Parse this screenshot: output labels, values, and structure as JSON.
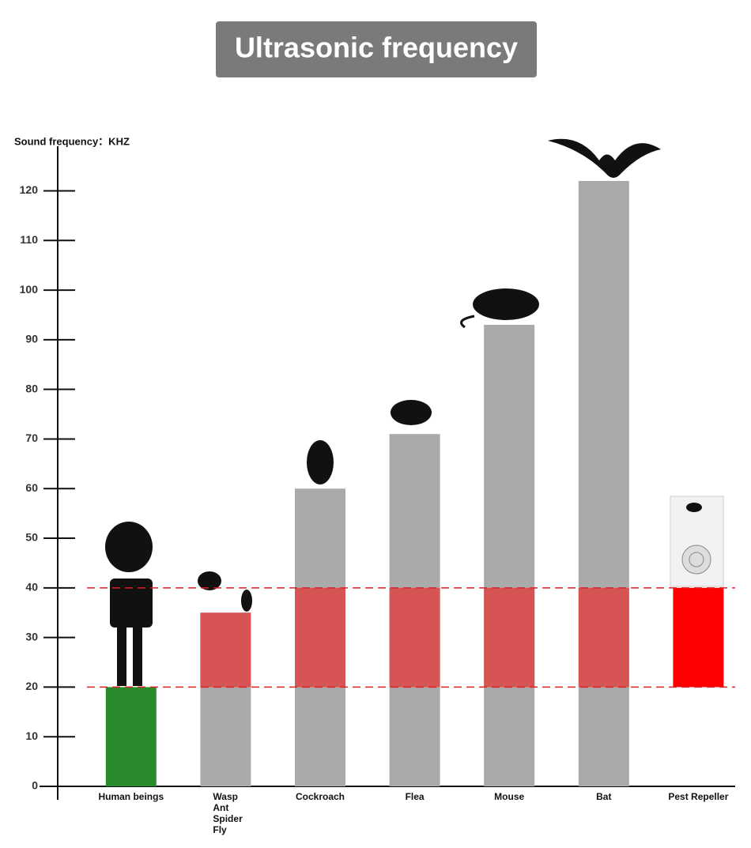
{
  "chart_data": {
    "type": "bar",
    "title": "Ultrasonic frequency",
    "y_label": "Sound frequency：KHZ",
    "categories": [
      "Human beings",
      "Wasp\nAnt\nSpider\nFly",
      "Cockroach",
      "Flea",
      "Mouse",
      "Bat",
      "Pest Repeller"
    ],
    "values": [
      20,
      35,
      60,
      71,
      93,
      122,
      40
    ],
    "bases": [
      0,
      0,
      0,
      0,
      0,
      0,
      20
    ],
    "colors": [
      "#2a8a2e",
      "#aaaaaa",
      "#aaaaaa",
      "#aaaaaa",
      "#aaaaaa",
      "#aaaaaa",
      "#ff0000"
    ],
    "bar_color": "#aaaaaa",
    "band": [
      20,
      40
    ],
    "band_color": "#d65454",
    "ylim": [
      0,
      129
    ],
    "yticks": [
      0,
      10,
      20,
      30,
      40,
      50,
      60,
      70,
      80,
      90,
      100,
      110,
      120
    ]
  }
}
